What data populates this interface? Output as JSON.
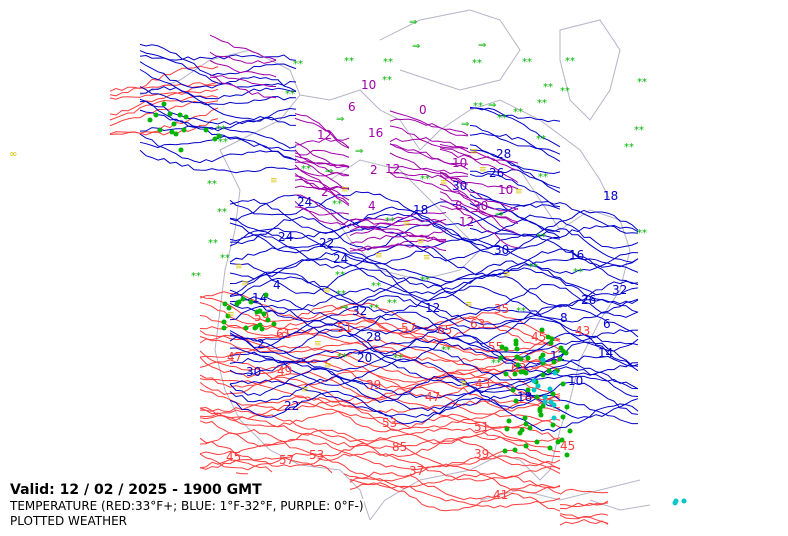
{
  "header": {
    "valid_time": "Valid: 12 / 02 / 2025  -  1900 GMT",
    "layer_temperature": "TEMPERATURE (RED:33°F+; BLUE: 1°F-32°F, PURPLE: 0°F-)",
    "layer_weather": "PLOTTED WEATHER"
  },
  "colors": {
    "warm_isotherm": "#ff3b3b",
    "cold_isotherm": "#0000c8",
    "subzero_isotherm": "#a000a8",
    "coastline": "#b4b4c8",
    "snow": "#00b400",
    "rain": "#00b400",
    "drizzle": "#00c8c8",
    "fog": "#d8c000"
  },
  "map": {
    "warm_labels": [
      "45",
      "45",
      "51",
      "43",
      "45",
      "47",
      "43",
      "53",
      "57",
      "49",
      "55",
      "39",
      "59",
      "63",
      "57",
      "53",
      "63",
      "65",
      "61",
      "85",
      "35",
      "41",
      "39",
      "47",
      "51",
      "37"
    ],
    "cold_labels": [
      "2",
      "18",
      "22",
      "30",
      "26",
      "32",
      "10",
      "4",
      "14",
      "18",
      "24",
      "28",
      "32",
      "24",
      "28",
      "12",
      "6",
      "16",
      "20",
      "30",
      "22",
      "18",
      "26",
      "14",
      "8",
      "12",
      "24",
      "30"
    ],
    "subzero_labels": [
      "2",
      "6",
      "16",
      "30",
      "10",
      "12",
      "10",
      "10",
      "12",
      "2",
      "4",
      "8",
      "12",
      "0"
    ],
    "weather_symbols": [
      "snow-icon",
      "rain-icon",
      "drizzle-icon",
      "fog-icon",
      "thunderstorm-icon",
      "wind-arrow-icon"
    ]
  }
}
